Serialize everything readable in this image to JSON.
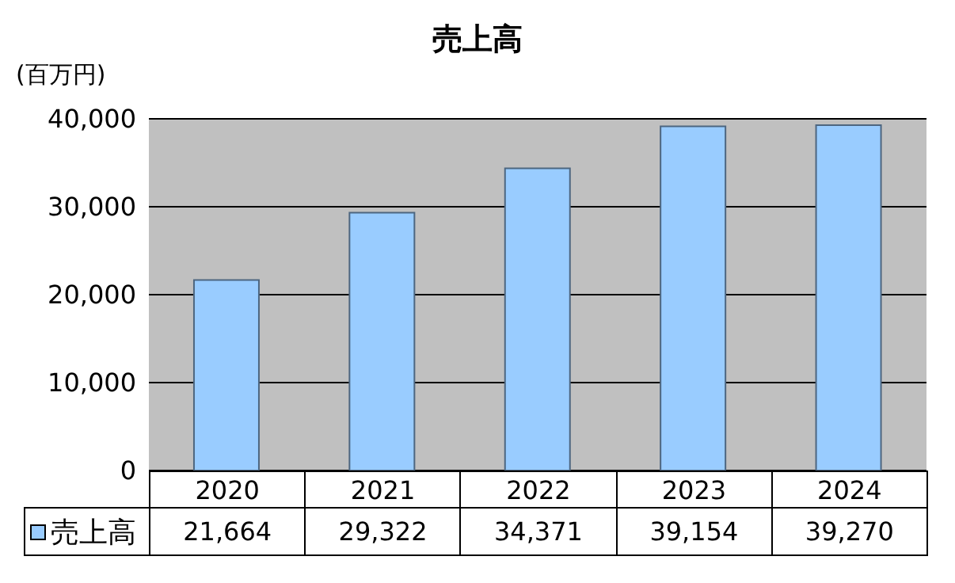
{
  "chart_data": {
    "type": "bar",
    "title": "売上高",
    "ylabel": "(百万円)",
    "categories": [
      "2020",
      "2021",
      "2022",
      "2023",
      "2024"
    ],
    "series": [
      {
        "name": "売上高",
        "color": "#99ccff",
        "values": [
          21664,
          29322,
          34371,
          39154,
          39270
        ],
        "value_labels": [
          "21,664",
          "29,322",
          "34,371",
          "39,154",
          "39,270"
        ]
      }
    ],
    "ylim": [
      0,
      40000
    ],
    "yticks": [
      {
        "value": 0,
        "label": "0"
      },
      {
        "value": 10000,
        "label": "10,000"
      },
      {
        "value": 20000,
        "label": "20,000"
      },
      {
        "value": 30000,
        "label": "30,000"
      },
      {
        "value": 40000,
        "label": "40,000"
      }
    ],
    "grid": "y",
    "legend": "bottom left"
  }
}
